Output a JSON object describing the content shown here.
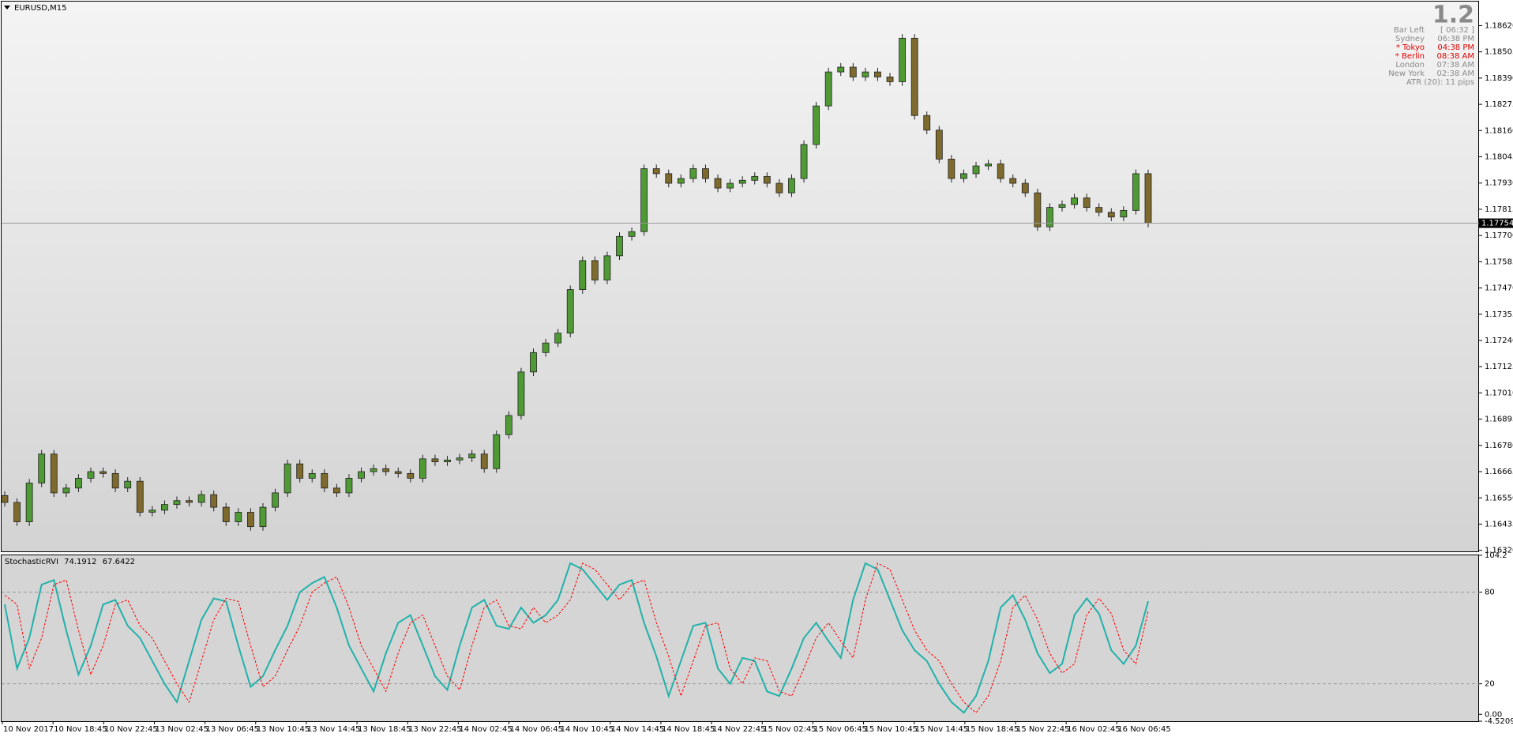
{
  "chart_data": [
    {
      "type": "candlestick",
      "title": "EURUSD,M15",
      "candles": {
        "open": [
          1.1656,
          1.1653,
          1.16445,
          1.16615,
          1.16742,
          1.16572,
          1.16593,
          1.16636,
          1.16665,
          1.16657,
          1.16593,
          1.16623,
          1.16487,
          1.16496,
          1.16521,
          1.16538,
          1.1653,
          1.16564,
          1.16509,
          1.16445,
          1.16487,
          1.16424,
          1.16509,
          1.16572,
          1.16699,
          1.16636,
          1.16657,
          1.16593,
          1.16572,
          1.16636,
          1.16665,
          1.16678,
          1.16665,
          1.16657,
          1.16636,
          1.16721,
          1.16708,
          1.16716,
          1.16725,
          1.16742,
          1.16678,
          1.16827,
          1.16911,
          1.17102,
          1.17187,
          1.17229,
          1.17272,
          1.17463,
          1.1759,
          1.17505,
          1.17611,
          1.17696,
          1.17717,
          1.17993,
          1.17971,
          1.17929,
          1.1795,
          1.17993,
          1.1795,
          1.17908,
          1.17929,
          1.17942,
          1.17959,
          1.17929,
          1.17887,
          1.1795,
          1.18099,
          1.18268,
          1.18417,
          1.18438,
          1.18395,
          1.18417,
          1.18395,
          1.18374,
          1.18565,
          1.18226,
          1.18162,
          1.18035,
          1.1795,
          1.17971,
          1.18005,
          1.18014,
          1.1795,
          1.17929,
          1.17887,
          1.17738,
          1.17823,
          1.17836,
          1.17865,
          1.17823,
          1.17802,
          1.17781,
          1.1781,
          1.17971
        ],
        "high": [
          1.16578,
          1.16548,
          1.16633,
          1.1676,
          1.1676,
          1.16611,
          1.16654,
          1.16683,
          1.16683,
          1.16675,
          1.16641,
          1.16641,
          1.16514,
          1.16539,
          1.16556,
          1.16556,
          1.16582,
          1.16582,
          1.16527,
          1.16505,
          1.16505,
          1.16527,
          1.1659,
          1.16717,
          1.16717,
          1.16675,
          1.16675,
          1.16611,
          1.16654,
          1.16683,
          1.16696,
          1.16696,
          1.16683,
          1.16675,
          1.16739,
          1.16739,
          1.16734,
          1.16743,
          1.1676,
          1.1676,
          1.16845,
          1.16929,
          1.1712,
          1.17205,
          1.17247,
          1.1729,
          1.17481,
          1.17608,
          1.17608,
          1.17629,
          1.17714,
          1.17735,
          1.18011,
          1.18011,
          1.17989,
          1.17968,
          1.18011,
          1.18011,
          1.17968,
          1.17947,
          1.1796,
          1.17977,
          1.17977,
          1.17947,
          1.17968,
          1.18117,
          1.18286,
          1.18435,
          1.18456,
          1.18456,
          1.18435,
          1.18435,
          1.18413,
          1.18583,
          1.18583,
          1.18244,
          1.1818,
          1.18053,
          1.17989,
          1.18023,
          1.18032,
          1.18032,
          1.17968,
          1.17947,
          1.17905,
          1.17841,
          1.17854,
          1.17883,
          1.17883,
          1.17841,
          1.1782,
          1.17828,
          1.17989,
          1.17989
        ],
        "low": [
          1.16512,
          1.16427,
          1.16427,
          1.16597,
          1.16554,
          1.16554,
          1.16575,
          1.16618,
          1.16639,
          1.16575,
          1.16575,
          1.16469,
          1.16469,
          1.16478,
          1.16503,
          1.16512,
          1.16512,
          1.16491,
          1.16427,
          1.16427,
          1.16406,
          1.16406,
          1.16491,
          1.16554,
          1.16618,
          1.16618,
          1.16575,
          1.16554,
          1.16554,
          1.16618,
          1.16647,
          1.16647,
          1.16639,
          1.16618,
          1.16618,
          1.1669,
          1.1669,
          1.16698,
          1.16707,
          1.1666,
          1.1666,
          1.16809,
          1.16893,
          1.17084,
          1.17169,
          1.17211,
          1.17254,
          1.17445,
          1.17487,
          1.17487,
          1.17593,
          1.17678,
          1.17699,
          1.17953,
          1.17911,
          1.17911,
          1.17932,
          1.17932,
          1.1789,
          1.1789,
          1.17911,
          1.17924,
          1.17911,
          1.17869,
          1.17869,
          1.17932,
          1.18081,
          1.1825,
          1.18399,
          1.18377,
          1.18377,
          1.18377,
          1.18356,
          1.18356,
          1.18208,
          1.18144,
          1.18017,
          1.17932,
          1.17932,
          1.17953,
          1.17987,
          1.17932,
          1.17911,
          1.17869,
          1.1772,
          1.1772,
          1.17805,
          1.17818,
          1.17805,
          1.17784,
          1.17763,
          1.17763,
          1.17792,
          1.17736
        ],
        "close": [
          1.1653,
          1.16445,
          1.16615,
          1.16742,
          1.16572,
          1.16593,
          1.16636,
          1.16665,
          1.16657,
          1.16593,
          1.16623,
          1.16487,
          1.16496,
          1.16521,
          1.16538,
          1.1653,
          1.16564,
          1.16509,
          1.16445,
          1.16487,
          1.16424,
          1.16509,
          1.16572,
          1.16699,
          1.16636,
          1.16657,
          1.16593,
          1.16572,
          1.16636,
          1.16665,
          1.16678,
          1.16665,
          1.16657,
          1.16636,
          1.16721,
          1.16708,
          1.16716,
          1.16725,
          1.16742,
          1.16678,
          1.16827,
          1.16911,
          1.17102,
          1.17187,
          1.17229,
          1.17272,
          1.17463,
          1.1759,
          1.17505,
          1.17611,
          1.17696,
          1.17717,
          1.17993,
          1.17971,
          1.17929,
          1.1795,
          1.17993,
          1.1795,
          1.17908,
          1.17929,
          1.17942,
          1.17959,
          1.17929,
          1.17887,
          1.1795,
          1.18099,
          1.18268,
          1.18417,
          1.18438,
          1.18395,
          1.18417,
          1.18395,
          1.18374,
          1.18565,
          1.18226,
          1.18162,
          1.18035,
          1.1795,
          1.17971,
          1.18005,
          1.18014,
          1.1795,
          1.17929,
          1.17887,
          1.17738,
          1.17823,
          1.17836,
          1.17865,
          1.17823,
          1.17802,
          1.17781,
          1.1781,
          1.17971,
          1.17754
        ]
      },
      "up_color": "#4f9a34",
      "down_color": "#7d6a2c",
      "ylim": [
        1.16312,
        1.18722
      ],
      "yticks": [
        {
          "value": 1.1862,
          "label": "1.18620"
        },
        1.18505,
        {
          "value": 1.1839,
          "label": "1.18390"
        },
        1.18275,
        {
          "value": 1.1816,
          "label": "1.18160"
        },
        1.18045,
        {
          "value": 1.1793,
          "label": "1.17930"
        },
        1.17815,
        {
          "value": 1.177,
          "label": "1.17700"
        },
        1.17585,
        {
          "value": 1.1747,
          "label": "1.17470"
        },
        1.17355,
        {
          "value": 1.1724,
          "label": "1.17240"
        },
        1.17125,
        {
          "value": 1.1701,
          "label": "1.17010"
        },
        1.16895,
        {
          "value": 1.1678,
          "label": "1.16780"
        },
        1.16665,
        {
          "value": 1.1655,
          "label": "1.16550"
        },
        1.16435,
        {
          "value": 1.1632,
          "label": "1.16320"
        }
      ],
      "last_price_line": true
    },
    {
      "type": "line",
      "title": "StochasticRVI",
      "series": [
        {
          "color": "#20b2aa",
          "dash": false,
          "values": [
            72,
            30,
            50,
            85,
            88,
            55,
            26,
            45,
            72,
            75,
            58,
            50,
            35,
            20,
            8,
            35,
            62,
            76,
            74,
            45,
            18,
            25,
            42,
            58,
            80,
            86,
            90,
            70,
            45,
            30,
            15,
            40,
            60,
            65,
            45,
            25,
            16,
            45,
            70,
            75,
            58,
            56,
            70,
            60,
            65,
            75,
            99,
            95,
            85,
            75,
            85,
            88,
            60,
            38,
            12,
            35,
            58,
            60,
            30,
            20,
            37,
            35,
            15,
            12,
            30,
            50,
            60,
            48,
            37,
            75,
            99,
            95,
            75,
            55,
            42,
            35,
            20,
            8,
            1,
            12,
            35,
            70,
            78,
            62,
            40,
            27,
            33,
            65,
            76,
            66,
            42,
            33,
            45,
            74.1912
          ]
        },
        {
          "color": "#ff0000",
          "dash": true,
          "values": [
            78,
            72,
            30,
            50,
            85,
            88,
            55,
            26,
            45,
            72,
            75,
            58,
            50,
            35,
            20,
            8,
            35,
            62,
            76,
            74,
            45,
            18,
            25,
            42,
            58,
            80,
            86,
            90,
            70,
            45,
            30,
            15,
            40,
            60,
            65,
            45,
            25,
            16,
            45,
            70,
            75,
            58,
            56,
            70,
            60,
            65,
            75,
            99,
            95,
            85,
            75,
            85,
            88,
            60,
            38,
            12,
            35,
            58,
            60,
            30,
            20,
            37,
            35,
            15,
            12,
            30,
            50,
            60,
            48,
            37,
            75,
            99,
            95,
            75,
            55,
            42,
            35,
            20,
            8,
            1,
            12,
            35,
            70,
            78,
            62,
            40,
            27,
            33,
            65,
            76,
            66,
            42,
            33,
            67.6422
          ]
        }
      ],
      "ylim": [
        -4.5209,
        104.2
      ],
      "yticks": [
        104.2,
        80,
        20,
        {
          "value": 0,
          "label": "0.00"
        },
        -4.5209
      ],
      "levels": [
        80,
        20
      ],
      "x_labels": [
        "10 Nov 2017",
        "10 Nov 18:45",
        "10 Nov 22:45",
        "13 Nov 02:45",
        "13 Nov 06:45",
        "13 Nov 10:45",
        "13 Nov 14:45",
        "13 Nov 18:45",
        "13 Nov 22:45",
        "14 Nov 02:45",
        "14 Nov 06:45",
        "14 Nov 10:45",
        "14 Nov 14:45",
        "14 Nov 18:45",
        "14 Nov 22:45",
        "15 Nov 02:45",
        "15 Nov 06:45",
        "15 Nov 10:45",
        "15 Nov 14:45",
        "15 Nov 18:45",
        "15 Nov 22:45",
        "16 Nov 02:45",
        "16 Nov 06:45"
      ]
    }
  ],
  "info_panel": {
    "big": "1.2",
    "rows": [
      {
        "label": "Bar Left",
        "value": "[ 06:32 ]",
        "highlight": false
      },
      {
        "label": "Sydney",
        "value": "06:38 PM",
        "highlight": false
      },
      {
        "label": "* Tokyo",
        "value": "04:38 PM",
        "highlight": true
      },
      {
        "label": "* Berlin",
        "value": "08:38 AM",
        "highlight": true
      },
      {
        "label": "London",
        "value": "07:38 AM",
        "highlight": false
      },
      {
        "label": "New York",
        "value": "02:38 AM",
        "highlight": false
      }
    ],
    "atr": "ATR (20): 11 pips"
  }
}
